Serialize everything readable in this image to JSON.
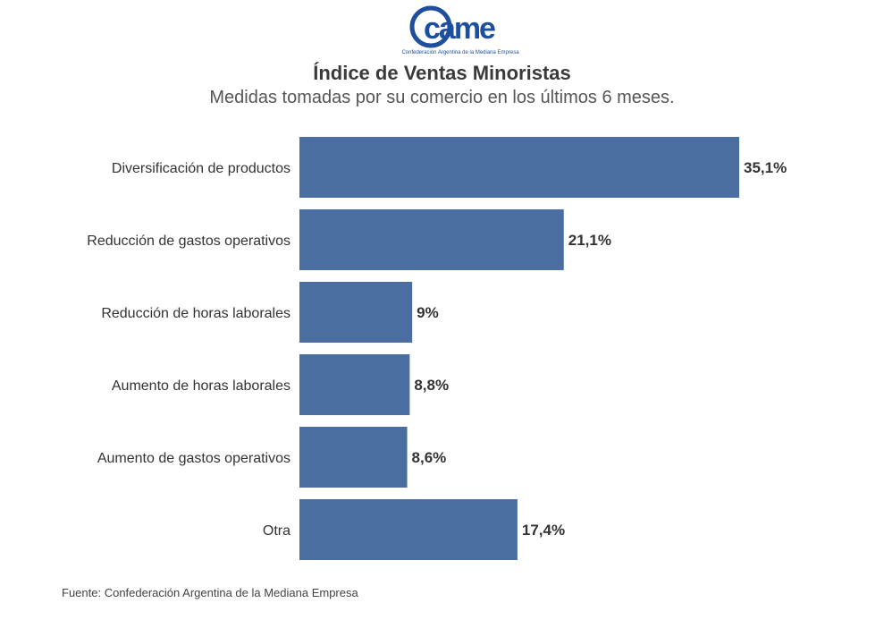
{
  "logo": {
    "text": "came",
    "caption": "Confederación Argentina de la Mediana Empresa"
  },
  "header": {
    "title": "Índice de Ventas Minoristas",
    "subtitle": "Medidas tomadas por su comercio en los últimos 6 meses."
  },
  "footer": {
    "source": "Fuente: Confederación Argentina de la Mediana Empresa"
  },
  "colors": {
    "bar": "#4a6ea0",
    "brand": "#1d4f9c"
  },
  "chart_data": {
    "type": "bar",
    "orientation": "horizontal",
    "title": "Índice de Ventas Minoristas",
    "subtitle": "Medidas tomadas por su comercio en los últimos 6 meses.",
    "categories": [
      "Diversificación de productos",
      "Reducción de gastos operativos",
      "Reducción de horas laborales",
      "Aumento de horas laborales",
      "Aumento de gastos operativos",
      "Otra"
    ],
    "values": [
      35.1,
      21.1,
      9,
      8.8,
      8.6,
      17.4
    ],
    "value_labels": [
      "35,1%",
      "21,1%",
      "9%",
      "8,8%",
      "8,6%",
      "17,4%"
    ],
    "unit": "%",
    "xlabel": "",
    "ylabel": "",
    "xlim": [
      0,
      35.1
    ],
    "grid": false,
    "legend": "none"
  }
}
